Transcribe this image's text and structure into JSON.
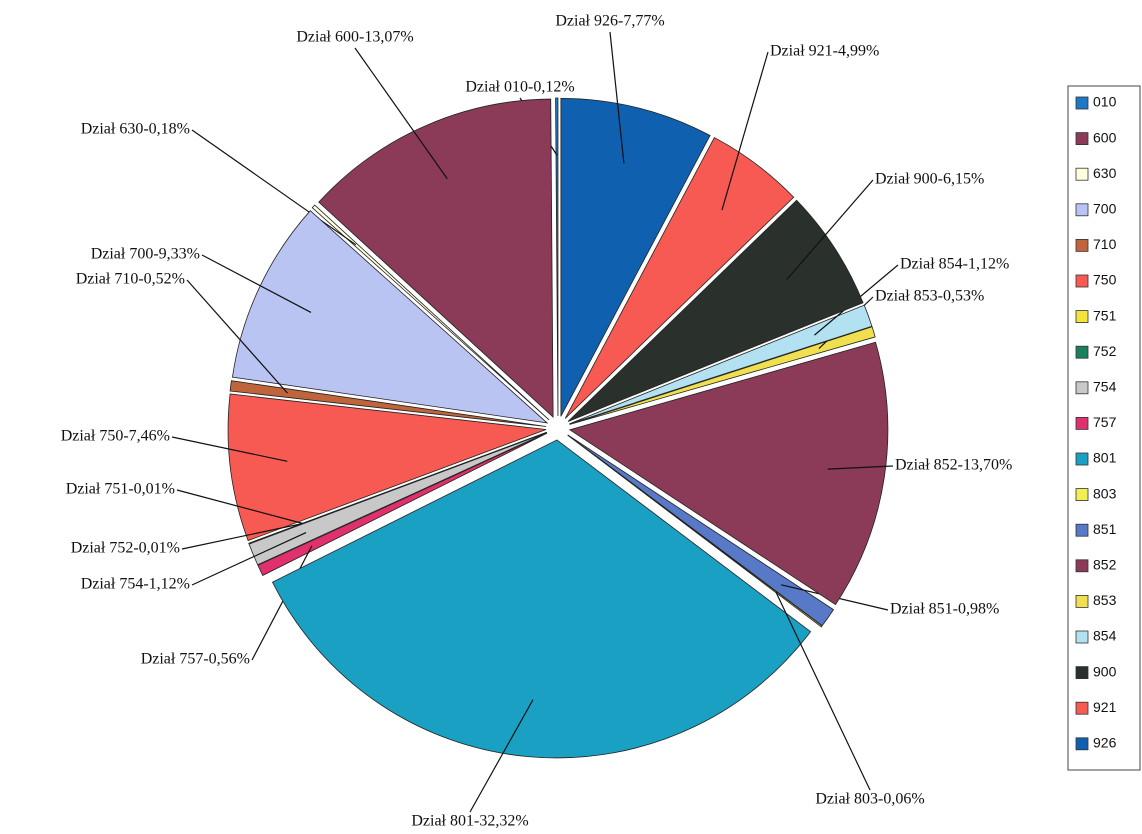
{
  "chart_data": {
    "type": "pie",
    "categories": [
      "010",
      "600",
      "630",
      "700",
      "710",
      "750",
      "751",
      "752",
      "754",
      "757",
      "801",
      "803",
      "851",
      "852",
      "853",
      "854",
      "900",
      "921",
      "926"
    ],
    "values": [
      0.12,
      13.07,
      0.18,
      9.33,
      0.52,
      7.46,
      0.01,
      0.01,
      1.12,
      0.56,
      32.32,
      0.06,
      0.98,
      13.7,
      0.53,
      1.12,
      6.15,
      4.99,
      7.77
    ],
    "value_labels": [
      "Dział 010-0,12%",
      "Dział 600-13,07%",
      "Dział 630-0,18%",
      "Dział 700-9,33%",
      "Dział 710-0,52%",
      "Dział 750-7,46%",
      "Dział 751-0,01%",
      "Dział 752-0,01%",
      "Dział 754-1,12%",
      "Dział 757-0,56%",
      "Dział 801-32,32%",
      "Dział 803-0,06%",
      "Dział 851-0,98%",
      "Dział 852-13,70%",
      "Dział 853-0,53%",
      "Dział 854-1,12%",
      "Dział 900-6,15%",
      "Dział 921-4,99%",
      "Dział 926-7,77%"
    ],
    "colors": [
      "#1f78c4",
      "#8b3a58",
      "#ffffe0",
      "#b9c4f2",
      "#c0643c",
      "#f65a52",
      "#f2e43c",
      "#1a8060",
      "#c8c8c8",
      "#e0306e",
      "#1aa0c2",
      "#f2f050",
      "#5878c8",
      "#8b3a58",
      "#f0e050",
      "#b2e2f2",
      "#2a302c",
      "#f65a52",
      "#1060b0"
    ],
    "legend": "right"
  }
}
